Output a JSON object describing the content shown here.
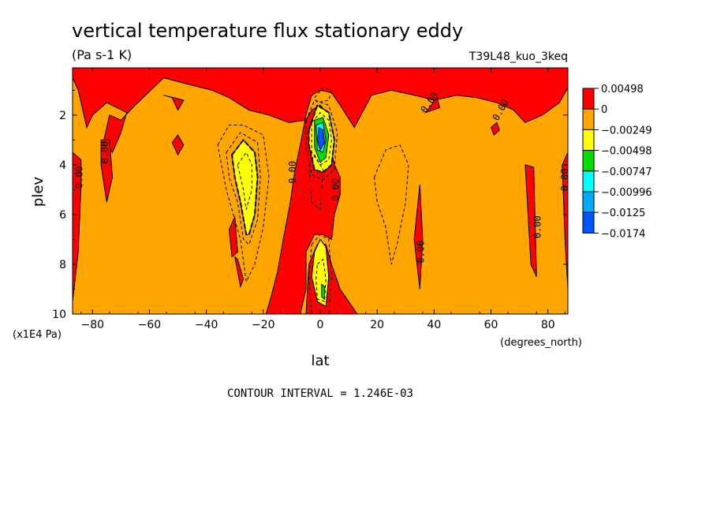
{
  "chart_data": {
    "type": "heatmap",
    "title": "vertical temperature flux stationary eddy",
    "units": "(Pa s-1 K)",
    "run_label": "T39L48_kuo_3keq",
    "xlabel": "lat",
    "x_units": "(degrees_north)",
    "ylabel": "plev",
    "y_units": "(x1E4 Pa)",
    "xlim": [
      -87,
      87
    ],
    "ylim": [
      10,
      0.1
    ],
    "x_ticks": [
      -80,
      -60,
      -40,
      -20,
      0,
      20,
      40,
      60,
      80
    ],
    "y_ticks": [
      2,
      4,
      6,
      8,
      10
    ],
    "contour_interval_text": "CONTOUR INTERVAL = 1.246E-03",
    "contour_label": "0.00",
    "colorbar": {
      "levels": [
        "0.00498",
        "0",
        "-0.00249",
        "-0.00498",
        "-0.00747",
        "-0.00996",
        "-0.0125",
        "-0.0174"
      ],
      "colors": [
        "#ff0000",
        "#ffa500",
        "#ffff00",
        "#00e000",
        "#00ffff",
        "#00aaff",
        "#0055ff"
      ]
    },
    "background_color": "#ffa500",
    "regions": [
      {
        "fill": "#ff0000",
        "pts": [
          [
            -87,
            0.1
          ],
          [
            87,
            0.1
          ],
          [
            87,
            0.9
          ],
          [
            84,
            1.5
          ],
          [
            78,
            2.0
          ],
          [
            72,
            2.3
          ],
          [
            68,
            1.8
          ],
          [
            62,
            1.5
          ],
          [
            55,
            1.3
          ],
          [
            48,
            1.2
          ],
          [
            40,
            1.4
          ],
          [
            33,
            1.2
          ],
          [
            25,
            1.0
          ],
          [
            18,
            1.2
          ],
          [
            12,
            2.5
          ],
          [
            7,
            1.6
          ],
          [
            4,
            1.1
          ],
          [
            0,
            1.0
          ],
          [
            -3,
            1.2
          ],
          [
            -5,
            2.0
          ],
          [
            -7,
            3.2
          ],
          [
            -9,
            4.3
          ],
          [
            -10.5,
            5.5
          ],
          [
            -13,
            7.0
          ],
          [
            -15,
            8.3
          ],
          [
            -17,
            9.2
          ],
          [
            -19,
            10
          ],
          [
            -7,
            10
          ],
          [
            -5,
            9
          ],
          [
            -5,
            7.5
          ],
          [
            -2,
            6.8
          ],
          [
            1,
            6.8
          ],
          [
            4,
            7.0
          ],
          [
            5,
            6.0
          ],
          [
            7,
            5.2
          ],
          [
            7,
            4.5
          ],
          [
            5,
            4.0
          ],
          [
            4,
            3.5
          ],
          [
            4,
            2.8
          ],
          [
            3,
            2.0
          ],
          [
            0,
            1.6
          ],
          [
            -3,
            1.8
          ],
          [
            -5,
            2.2
          ],
          [
            -11,
            2.3
          ],
          [
            -18,
            2.0
          ],
          [
            -25,
            1.8
          ],
          [
            -32,
            1.3
          ],
          [
            -38,
            1.0
          ],
          [
            -45,
            0.8
          ],
          [
            -55,
            0.5
          ],
          [
            -65,
            1.6
          ],
          [
            -70,
            2.2
          ],
          [
            -74,
            2.0
          ],
          [
            -76,
            3.0
          ],
          [
            -73,
            3.5
          ],
          [
            -70,
            2.7
          ],
          [
            -68,
            1.9
          ],
          [
            -75,
            1.5
          ],
          [
            -80,
            2.0
          ],
          [
            -82,
            2.5
          ],
          [
            -85,
            1.0
          ],
          [
            -87,
            0.5
          ]
        ]
      },
      {
        "fill": "#ff0000",
        "pts": [
          [
            -87,
            3.5
          ],
          [
            -84,
            3.8
          ],
          [
            -84,
            4.8
          ],
          [
            -85,
            7.5
          ],
          [
            -87,
            9.5
          ]
        ]
      },
      {
        "fill": "#ff0000",
        "pts": [
          [
            -77,
            3.0
          ],
          [
            -74,
            3.0
          ],
          [
            -73,
            4.5
          ],
          [
            -75,
            5.5
          ],
          [
            -77,
            4.0
          ]
        ]
      },
      {
        "fill": "#ff0000",
        "pts": [
          [
            -52,
            3.1
          ],
          [
            -50,
            2.8
          ],
          [
            -48,
            3.2
          ],
          [
            -50,
            3.6
          ]
        ]
      },
      {
        "fill": "#ff0000",
        "pts": [
          [
            -30,
            7.7
          ],
          [
            -29,
            7.8
          ],
          [
            -27,
            8.6
          ],
          [
            -28,
            8.9
          ]
        ]
      },
      {
        "fill": "#ff0000",
        "pts": [
          [
            -32,
            6.6
          ],
          [
            -30,
            6.1
          ],
          [
            -29,
            7.5
          ],
          [
            -31,
            7.7
          ]
        ]
      },
      {
        "fill": "#ff0000",
        "pts": [
          [
            -5,
            10
          ],
          [
            -4,
            8.0
          ],
          [
            -1,
            7.2
          ],
          [
            2,
            7.2
          ],
          [
            4,
            8.0
          ],
          [
            7,
            9.0
          ],
          [
            13,
            10
          ]
        ]
      },
      {
        "fill": "#ff0000",
        "pts": [
          [
            33,
            7.0
          ],
          [
            35,
            4.8
          ],
          [
            36,
            7.0
          ],
          [
            35,
            9.0
          ]
        ]
      },
      {
        "fill": "#ff0000",
        "pts": [
          [
            37,
            1.9
          ],
          [
            41,
            1.3
          ],
          [
            42,
            1.7
          ]
        ]
      },
      {
        "fill": "#ff0000",
        "pts": [
          [
            60,
            2.5
          ],
          [
            62,
            2.3
          ],
          [
            63,
            2.6
          ],
          [
            61,
            2.8
          ]
        ]
      },
      {
        "fill": "#ff0000",
        "pts": [
          [
            72,
            4.0
          ],
          [
            75,
            4.1
          ],
          [
            76,
            8.5
          ],
          [
            74,
            8.0
          ]
        ]
      },
      {
        "fill": "#ff0000",
        "pts": [
          [
            85,
            4.0
          ],
          [
            87,
            3.5
          ],
          [
            87,
            9.0
          ],
          [
            86,
            7.0
          ]
        ]
      },
      {
        "fill": "#ff0000",
        "pts": [
          [
            -55,
            1.2
          ],
          [
            -52,
            1.3
          ],
          [
            -50,
            1.8
          ],
          [
            -48,
            1.4
          ]
        ]
      },
      {
        "fill": "#ffff00",
        "pts": [
          [
            -31,
            3.6
          ],
          [
            -27,
            3.0
          ],
          [
            -23,
            3.5
          ],
          [
            -22,
            4.5
          ],
          [
            -23,
            6.0
          ],
          [
            -25,
            6.8
          ],
          [
            -26,
            6.8
          ],
          [
            -28,
            5.5
          ],
          [
            -30,
            4.5
          ]
        ]
      },
      {
        "fill": "#ffff00",
        "pts": [
          [
            -4,
            2.6
          ],
          [
            -1,
            1.6
          ],
          [
            3,
            1.9
          ],
          [
            5,
            3.0
          ],
          [
            4,
            4.0
          ],
          [
            1,
            4.3
          ],
          [
            -2,
            4.2
          ],
          [
            -4,
            3.2
          ]
        ]
      },
      {
        "fill": "#00e000",
        "pts": [
          [
            -2,
            2.2
          ],
          [
            1,
            2.1
          ],
          [
            3,
            2.8
          ],
          [
            2,
            3.7
          ],
          [
            0,
            3.9
          ],
          [
            -2,
            3.3
          ]
        ]
      },
      {
        "fill": "#00ffff",
        "pts": [
          [
            -1.5,
            2.4
          ],
          [
            1,
            2.3
          ],
          [
            2,
            3.0
          ],
          [
            1,
            3.5
          ],
          [
            -1,
            3.4
          ]
        ]
      },
      {
        "fill": "#0055ff",
        "pts": [
          [
            -0.5,
            2.5
          ],
          [
            1,
            2.6
          ],
          [
            1.5,
            3.1
          ],
          [
            0,
            3.4
          ],
          [
            -1,
            3.0
          ]
        ]
      },
      {
        "fill": "#ffff00",
        "pts": [
          [
            -2,
            7.5
          ],
          [
            0,
            7.0
          ],
          [
            2,
            7.3
          ],
          [
            3,
            8.5
          ],
          [
            2,
            9.7
          ],
          [
            -1,
            9.5
          ],
          [
            -3,
            8.5
          ]
        ]
      },
      {
        "fill": "#00e000",
        "pts": [
          [
            0.5,
            8.8
          ],
          [
            1.5,
            8.9
          ],
          [
            1.5,
            9.4
          ],
          [
            0.5,
            9.3
          ]
        ]
      }
    ],
    "lines": [
      {
        "dash": true,
        "w": 1,
        "closed": true,
        "pts": [
          [
            -36,
            3.2
          ],
          [
            -32,
            2.4
          ],
          [
            -27,
            2.4
          ],
          [
            -20,
            2.8
          ],
          [
            -18,
            4.5
          ],
          [
            -20,
            6.5
          ],
          [
            -23,
            8.0
          ],
          [
            -26,
            8.7
          ],
          [
            -28,
            7.0
          ],
          [
            -33,
            5.0
          ]
        ]
      },
      {
        "dash": true,
        "w": 1,
        "closed": true,
        "pts": [
          [
            -33,
            3.5
          ],
          [
            -28,
            2.7
          ],
          [
            -22,
            3.1
          ],
          [
            -21,
            4.5
          ],
          [
            -22,
            6.2
          ],
          [
            -25,
            7.2
          ],
          [
            -27,
            7.0
          ],
          [
            -29,
            5.5
          ],
          [
            -32,
            4.5
          ]
        ]
      },
      {
        "dash": true,
        "w": 2,
        "closed": true,
        "pts": [
          [
            -31,
            3.6
          ],
          [
            -27,
            3.0
          ],
          [
            -23,
            3.5
          ],
          [
            -22,
            4.5
          ],
          [
            -23,
            6.0
          ],
          [
            -25,
            6.8
          ],
          [
            -26,
            6.8
          ],
          [
            -28,
            5.5
          ],
          [
            -30,
            4.5
          ]
        ]
      },
      {
        "dash": true,
        "w": 1,
        "closed": true,
        "pts": [
          [
            -29,
            4.0
          ],
          [
            -26,
            3.5
          ],
          [
            -24,
            4.0
          ],
          [
            -24,
            5.0
          ],
          [
            -26,
            5.8
          ],
          [
            -27,
            5.0
          ]
        ]
      },
      {
        "dash": true,
        "w": 1,
        "closed": true,
        "pts": [
          [
            -5,
            2.2
          ],
          [
            -2,
            1.4
          ],
          [
            3,
            1.6
          ],
          [
            6,
            2.7
          ],
          [
            5,
            4.2
          ],
          [
            1,
            4.6
          ],
          [
            -3,
            4.4
          ],
          [
            -5,
            3.3
          ]
        ]
      },
      {
        "dash": true,
        "w": 2,
        "closed": true,
        "pts": [
          [
            -4,
            2.6
          ],
          [
            -1,
            1.6
          ],
          [
            3,
            1.9
          ],
          [
            5,
            3.0
          ],
          [
            4,
            4.0
          ],
          [
            1,
            4.3
          ],
          [
            -2,
            4.2
          ],
          [
            -4,
            3.2
          ]
        ]
      },
      {
        "dash": true,
        "w": 1,
        "closed": true,
        "pts": [
          [
            -3,
            2.3
          ],
          [
            0,
            1.9
          ],
          [
            3,
            2.2
          ],
          [
            4,
            3.0
          ],
          [
            3,
            3.8
          ],
          [
            0,
            4.0
          ],
          [
            -3,
            3.5
          ]
        ]
      },
      {
        "dash": true,
        "w": 1,
        "closed": true,
        "pts": [
          [
            -3,
            7.2
          ],
          [
            0,
            6.8
          ],
          [
            3,
            7.0
          ],
          [
            4,
            8.5
          ],
          [
            3,
            10
          ],
          [
            -3,
            10
          ],
          [
            -4,
            8.5
          ]
        ]
      },
      {
        "dash": true,
        "w": 1,
        "closed": true,
        "pts": [
          [
            -2,
            7.5
          ],
          [
            0,
            7.0
          ],
          [
            2,
            7.3
          ],
          [
            3,
            8.5
          ],
          [
            2,
            9.7
          ],
          [
            -1,
            9.5
          ],
          [
            -3,
            8.5
          ]
        ]
      },
      {
        "dash": true,
        "w": 1,
        "closed": true,
        "pts": [
          [
            -1,
            8.0
          ],
          [
            1,
            7.8
          ],
          [
            2,
            8.6
          ],
          [
            1.5,
            9.5
          ],
          [
            -1,
            9.4
          ],
          [
            -1.5,
            8.6
          ]
        ]
      },
      {
        "dash": true,
        "w": 1,
        "closed": true,
        "pts": [
          [
            19,
            4.5
          ],
          [
            23,
            3.4
          ],
          [
            28,
            3.2
          ],
          [
            31,
            4.0
          ],
          [
            30,
            5.5
          ],
          [
            27,
            7.2
          ],
          [
            25,
            8.0
          ],
          [
            23,
            6.5
          ],
          [
            20,
            5.5
          ]
        ]
      },
      {
        "dash": true,
        "w": 1,
        "closed": true,
        "pts": [
          [
            -4,
            4.0
          ],
          [
            -2,
            3.6
          ],
          [
            1,
            4.2
          ],
          [
            0,
            5.8
          ],
          [
            -3,
            5.5
          ]
        ]
      },
      {
        "dash": true,
        "w": 1,
        "closed": true,
        "pts": [
          [
            -2,
            1.3
          ],
          [
            1,
            0.9
          ],
          [
            4,
            1.0
          ],
          [
            3,
            1.4
          ],
          [
            -1,
            1.5
          ]
        ]
      }
    ],
    "zero_labels": [
      {
        "x": -84.5,
        "y": 4.5,
        "rot": -90
      },
      {
        "x": -75.5,
        "y": 3.5,
        "rot": -90
      },
      {
        "x": -9.5,
        "y": 4.3,
        "rot": -90
      },
      {
        "x": 5.5,
        "y": 5.0,
        "rot": -90
      },
      {
        "x": 35.5,
        "y": 7.5,
        "rot": -90
      },
      {
        "x": 38.5,
        "y": 1.5,
        "rot": -55
      },
      {
        "x": 63.5,
        "y": 1.8,
        "rot": -60
      },
      {
        "x": 76.5,
        "y": 6.5,
        "rot": -90
      },
      {
        "x": 86.0,
        "y": 4.6,
        "rot": -90
      }
    ]
  }
}
